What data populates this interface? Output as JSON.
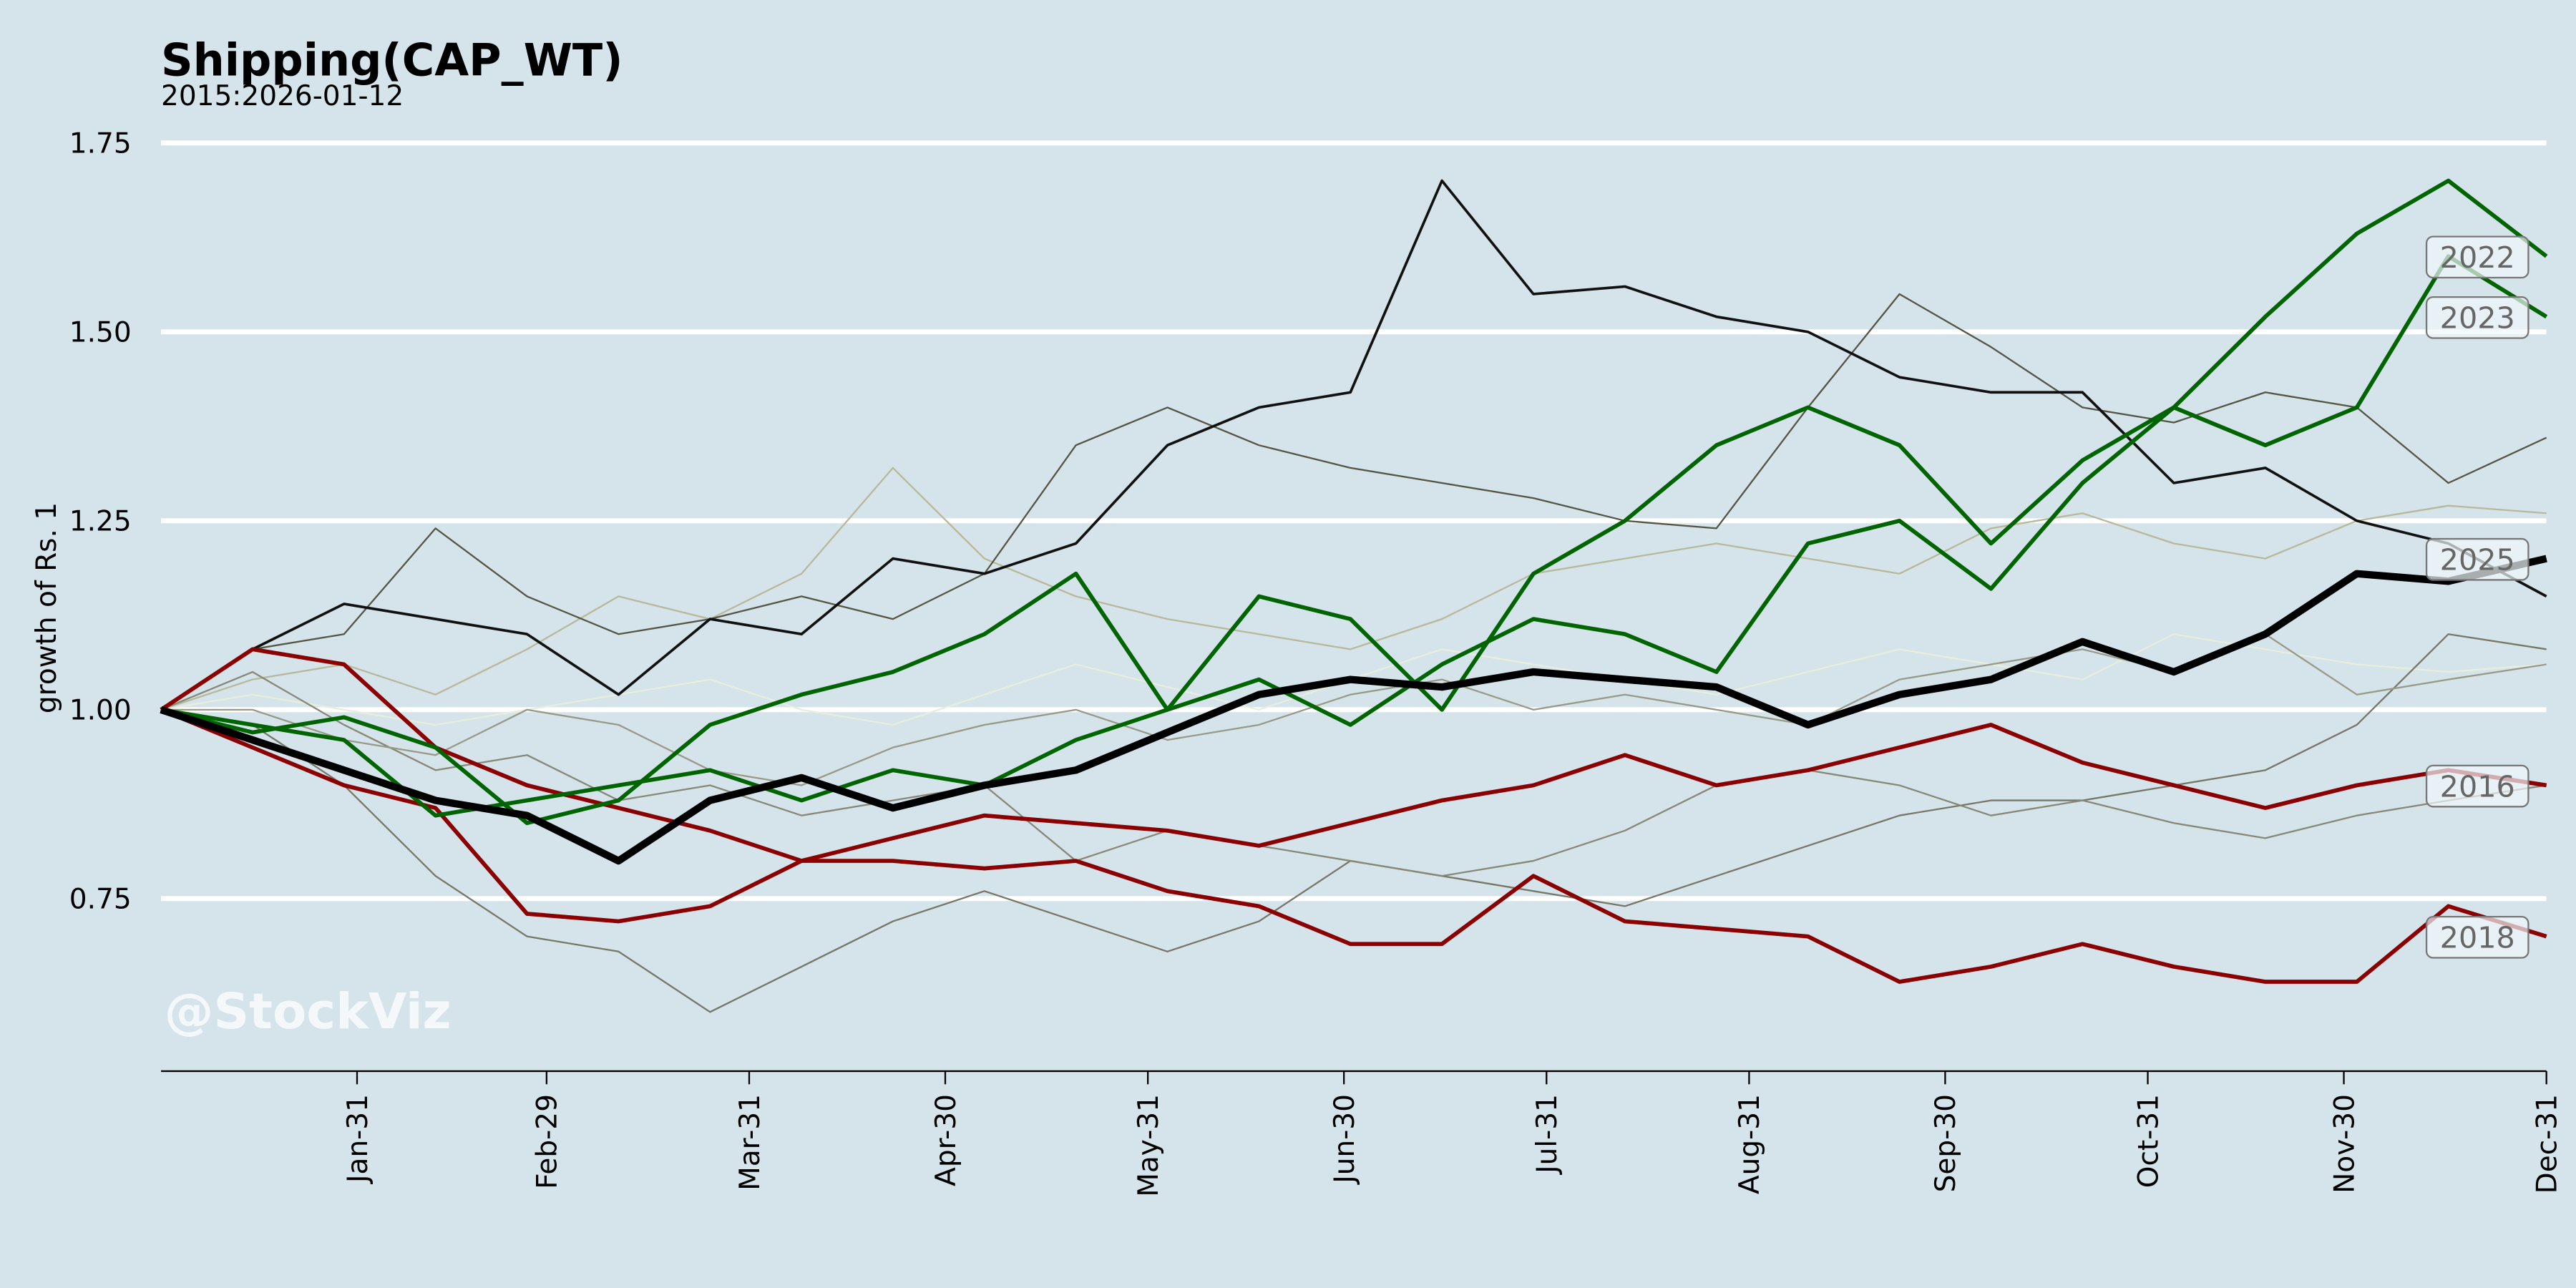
{
  "chart_data": {
    "type": "line",
    "title": "Shipping(CAP_WT)",
    "subtitle": "2015:2026-01-12",
    "xlabel": "",
    "ylabel": "growth of Rs. 1",
    "watermark": "@StockViz",
    "ylim": [
      0.52,
      1.78
    ],
    "xlim_days": [
      0,
      365
    ],
    "grid": "horizontal",
    "y_ticks": [
      {
        "value": 0.75,
        "label": "0.75"
      },
      {
        "value": 1.0,
        "label": "1.00"
      },
      {
        "value": 1.25,
        "label": "1.25"
      },
      {
        "value": 1.5,
        "label": "1.50"
      },
      {
        "value": 1.75,
        "label": "1.75"
      }
    ],
    "x_ticks": [
      {
        "day": 30,
        "label": "Jan-31"
      },
      {
        "day": 59,
        "label": "Feb-29"
      },
      {
        "day": 90,
        "label": "Mar-31"
      },
      {
        "day": 120,
        "label": "Apr-30"
      },
      {
        "day": 151,
        "label": "May-31"
      },
      {
        "day": 181,
        "label": "Jun-30"
      },
      {
        "day": 212,
        "label": "Jul-31"
      },
      {
        "day": 243,
        "label": "Aug-31"
      },
      {
        "day": 273,
        "label": "Sep-30"
      },
      {
        "day": 304,
        "label": "Oct-31"
      },
      {
        "day": 334,
        "label": "Nov-30"
      },
      {
        "day": 365,
        "label": "Dec-31"
      }
    ],
    "x_days": [
      0,
      14,
      28,
      42,
      56,
      70,
      84,
      98,
      112,
      126,
      140,
      154,
      168,
      182,
      196,
      210,
      224,
      238,
      252,
      266,
      280,
      294,
      308,
      322,
      336,
      350,
      365
    ],
    "series": [
      {
        "color": "#b8b89a",
        "width": 1,
        "values": [
          1.0,
          1.04,
          1.06,
          1.02,
          1.08,
          1.15,
          1.12,
          1.18,
          1.32,
          1.2,
          1.15,
          1.12,
          1.1,
          1.08,
          1.12,
          1.18,
          1.2,
          1.22,
          1.2,
          1.18,
          1.24,
          1.26,
          1.22,
          1.2,
          1.25,
          1.27,
          1.26
        ]
      },
      {
        "color": "#e8eedc",
        "width": 1,
        "values": [
          1.0,
          1.02,
          1.0,
          0.98,
          1.0,
          1.02,
          1.04,
          1.0,
          0.98,
          1.02,
          1.06,
          1.03,
          1.0,
          1.04,
          1.08,
          1.06,
          1.04,
          1.02,
          1.05,
          1.08,
          1.06,
          1.04,
          1.1,
          1.08,
          1.06,
          1.05,
          1.06
        ]
      },
      {
        "color": "#777766",
        "width": 1,
        "values": [
          1.0,
          0.98,
          0.9,
          0.78,
          0.7,
          0.68,
          0.6,
          0.66,
          0.72,
          0.76,
          0.72,
          0.68,
          0.72,
          0.8,
          0.78,
          0.76,
          0.74,
          0.78,
          0.82,
          0.86,
          0.88,
          0.88,
          0.9,
          0.92,
          0.98,
          1.1,
          1.08
        ]
      },
      {
        "color": "#888877",
        "width": 1,
        "values": [
          1.0,
          1.05,
          0.98,
          0.92,
          0.94,
          0.88,
          0.9,
          0.86,
          0.88,
          0.9,
          0.8,
          0.84,
          0.82,
          0.8,
          0.78,
          0.8,
          0.84,
          0.9,
          0.92,
          0.9,
          0.86,
          0.88,
          0.85,
          0.83,
          0.86,
          0.88,
          0.9
        ]
      },
      {
        "color": "#555544",
        "width": 1,
        "values": [
          1.0,
          1.08,
          1.1,
          1.24,
          1.15,
          1.1,
          1.12,
          1.15,
          1.12,
          1.18,
          1.35,
          1.4,
          1.35,
          1.32,
          1.3,
          1.28,
          1.25,
          1.24,
          1.4,
          1.55,
          1.48,
          1.4,
          1.38,
          1.42,
          1.4,
          1.3,
          1.36
        ]
      },
      {
        "color": "#999988",
        "width": 1,
        "values": [
          1.0,
          1.0,
          0.96,
          0.94,
          1.0,
          0.98,
          0.92,
          0.9,
          0.95,
          0.98,
          1.0,
          0.96,
          0.98,
          1.02,
          1.04,
          1.0,
          1.02,
          1.0,
          0.98,
          1.04,
          1.06,
          1.08,
          1.05,
          1.1,
          1.02,
          1.04,
          1.06
        ]
      },
      {
        "color": "#111111",
        "width": 1.6,
        "values": [
          1.0,
          1.08,
          1.14,
          1.12,
          1.1,
          1.02,
          1.12,
          1.1,
          1.2,
          1.18,
          1.22,
          1.35,
          1.4,
          1.42,
          1.7,
          1.55,
          1.56,
          1.52,
          1.5,
          1.44,
          1.42,
          1.42,
          1.3,
          1.32,
          1.25,
          1.22,
          1.15
        ]
      },
      {
        "color": "#8b0000",
        "width": 2.5,
        "values": [
          1.0,
          1.08,
          1.06,
          0.95,
          0.9,
          0.87,
          0.84,
          0.8,
          0.83,
          0.86,
          0.85,
          0.84,
          0.82,
          0.85,
          0.88,
          0.9,
          0.94,
          0.9,
          0.92,
          0.95,
          0.98,
          0.93,
          0.9,
          0.87,
          0.9,
          0.92,
          0.9
        ],
        "label": "2016"
      },
      {
        "color": "#8b0000",
        "width": 2.5,
        "values": [
          1.0,
          0.95,
          0.9,
          0.87,
          0.73,
          0.72,
          0.74,
          0.8,
          0.8,
          0.79,
          0.8,
          0.76,
          0.74,
          0.69,
          0.69,
          0.78,
          0.72,
          0.71,
          0.7,
          0.64,
          0.66,
          0.69,
          0.66,
          0.64,
          0.64,
          0.74,
          0.7
        ],
        "label": "2018"
      },
      {
        "color": "#006400",
        "width": 2.5,
        "values": [
          1.0,
          0.97,
          0.99,
          0.95,
          0.85,
          0.88,
          0.98,
          1.02,
          1.05,
          1.1,
          1.18,
          1.0,
          1.15,
          1.12,
          1.0,
          1.18,
          1.25,
          1.35,
          1.4,
          1.35,
          1.22,
          1.33,
          1.4,
          1.52,
          1.63,
          1.7,
          1.6
        ],
        "label": "2022"
      },
      {
        "color": "#006400",
        "width": 2.5,
        "values": [
          1.0,
          0.98,
          0.96,
          0.86,
          0.88,
          0.9,
          0.92,
          0.88,
          0.92,
          0.9,
          0.96,
          1.0,
          1.04,
          0.98,
          1.06,
          1.12,
          1.1,
          1.05,
          1.22,
          1.25,
          1.16,
          1.3,
          1.4,
          1.35,
          1.4,
          1.6,
          1.52
        ],
        "label": "2023"
      },
      {
        "color": "#000000",
        "width": 4.5,
        "values": [
          1.0,
          0.96,
          0.92,
          0.88,
          0.86,
          0.8,
          0.88,
          0.91,
          0.87,
          0.9,
          0.92,
          0.97,
          1.02,
          1.04,
          1.03,
          1.05,
          1.04,
          1.03,
          0.98,
          1.02,
          1.04,
          1.09,
          1.05,
          1.1,
          1.18,
          1.17,
          1.2
        ],
        "label": "2025"
      }
    ]
  }
}
